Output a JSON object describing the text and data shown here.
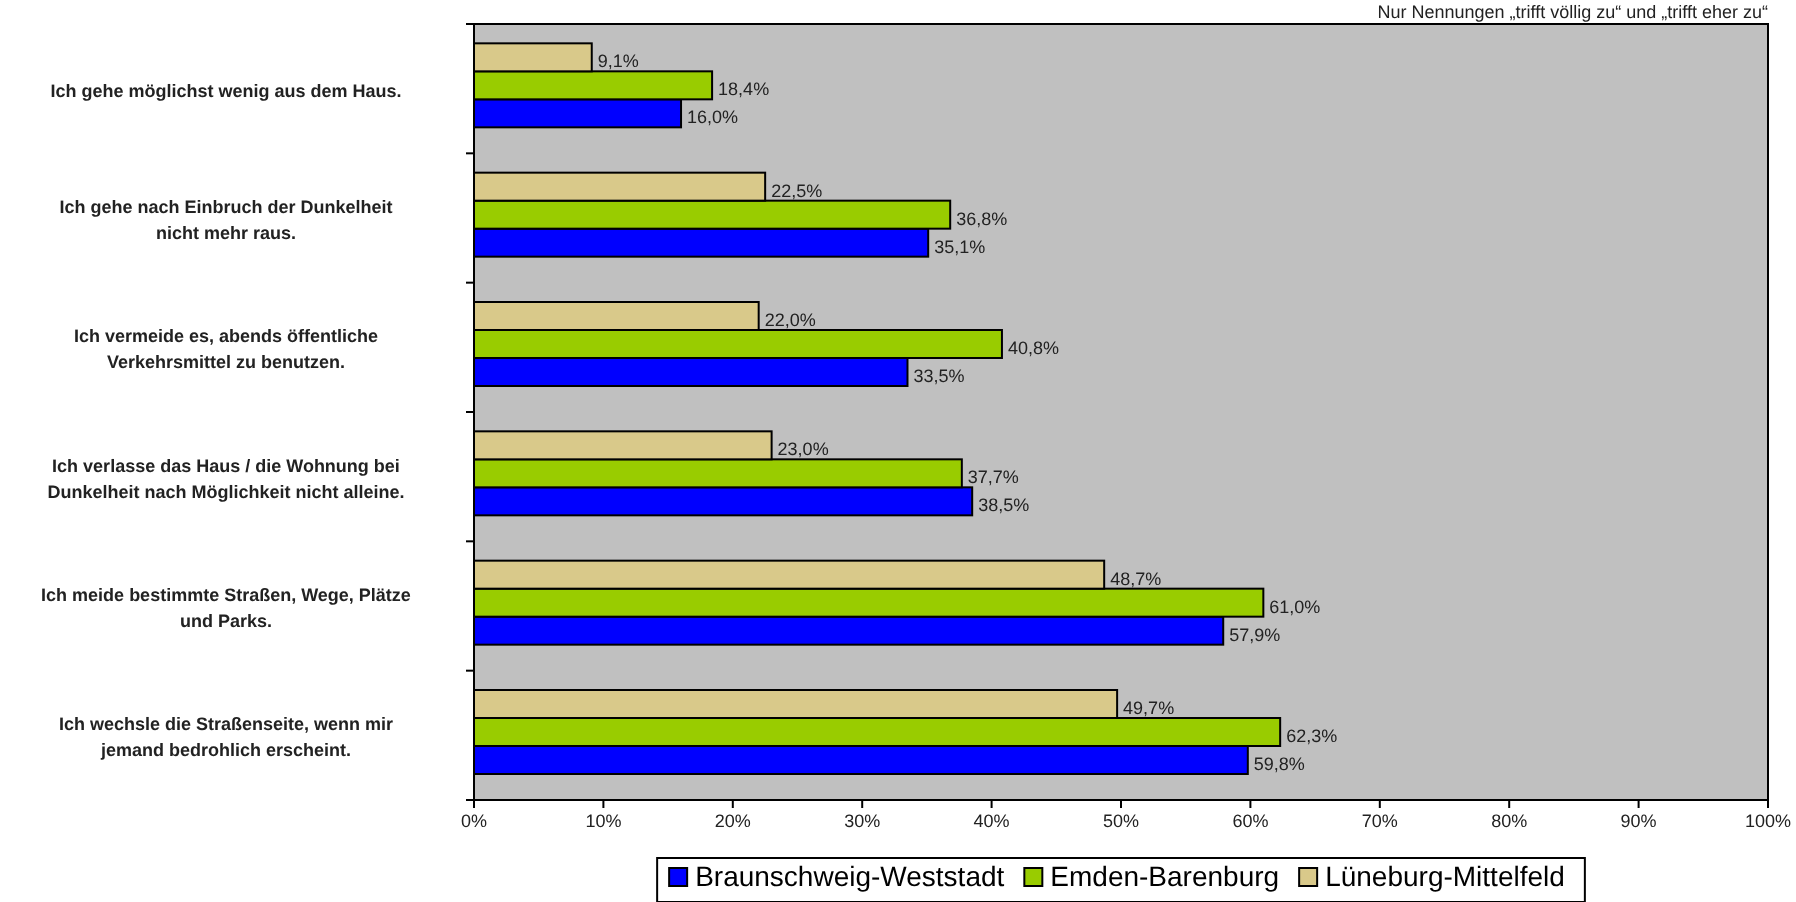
{
  "chart_data": {
    "type": "bar",
    "orientation": "horizontal",
    "annotations": [
      "Nur Nennungen „trifft völlig zu“ und „trifft eher zu“"
    ],
    "categories": [
      "Ich gehe möglichst wenig aus dem Haus.",
      "Ich gehe nach Einbruch der Dunkelheit nicht mehr raus.",
      "Ich vermeide es, abends öffentliche Verkehrsmittel zu benutzen.",
      "Ich verlasse das Haus / die Wohnung bei Dunkelheit nach Möglichkeit nicht alleine.",
      "Ich meide bestimmte Straßen, Wege, Plätze und Parks.",
      "Ich wechsle die Straßenseite, wenn mir jemand bedrohlich erscheint."
    ],
    "series": [
      {
        "name": "Braunschweig-Weststadt",
        "color": "#0000ff",
        "values": [
          16.0,
          35.1,
          33.5,
          38.5,
          57.9,
          59.8
        ],
        "value_labels": [
          "16,0%",
          "35,1%",
          "33,5%",
          "38,5%",
          "57,9%",
          "59,8%"
        ]
      },
      {
        "name": "Emden-Barenburg",
        "color": "#99cc00",
        "values": [
          18.4,
          36.8,
          40.8,
          37.7,
          61.0,
          62.3
        ],
        "value_labels": [
          "18,4%",
          "36,8%",
          "40,8%",
          "37,7%",
          "61,0%",
          "62,3%"
        ]
      },
      {
        "name": "Lüneburg-Mittelfeld",
        "color": "#d9c98a",
        "values": [
          9.1,
          22.5,
          22.0,
          23.0,
          48.7,
          49.7
        ],
        "value_labels": [
          "9,1%",
          "22,5%",
          "22,0%",
          "23,0%",
          "48,7%",
          "49,7%"
        ]
      }
    ],
    "xlim": [
      0,
      100
    ],
    "xticks": [
      {
        "value": 0,
        "label": "0%"
      },
      {
        "value": 10,
        "label": "10%"
      },
      {
        "value": 20,
        "label": "20%"
      },
      {
        "value": 30,
        "label": "30%"
      },
      {
        "value": 40,
        "label": "40%"
      },
      {
        "value": 50,
        "label": "50%"
      },
      {
        "value": 60,
        "label": "60%"
      },
      {
        "value": 70,
        "label": "70%"
      },
      {
        "value": 80,
        "label": "80%"
      },
      {
        "value": 90,
        "label": "90%"
      },
      {
        "value": 100,
        "label": "100%"
      }
    ],
    "grid": false,
    "legend": "bottom"
  }
}
